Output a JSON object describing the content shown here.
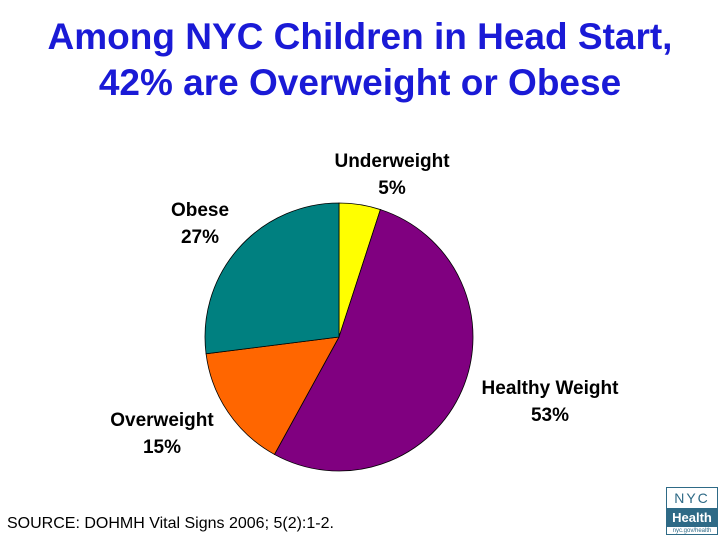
{
  "title": {
    "line1": "Among NYC Children in Head Start,",
    "line2": "42% are Overweight or Obese"
  },
  "chart_data": {
    "type": "pie",
    "slices": [
      {
        "label": "Underweight",
        "value": 5,
        "display": "5%",
        "color": "#ffff00"
      },
      {
        "label": "Healthy Weight",
        "value": 53,
        "display": "53%",
        "color": "#800080"
      },
      {
        "label": "Overweight",
        "value": 15,
        "display": "15%",
        "color": "#ff6600"
      },
      {
        "label": "Obese",
        "value": 27,
        "display": "27%",
        "color": "#008080"
      }
    ]
  },
  "source": "SOURCE:  DOHMH Vital Signs 2006; 5(2):1-2.",
  "logo": {
    "line1": "NYC",
    "line2": "Health",
    "url": "nyc.gov/health"
  }
}
